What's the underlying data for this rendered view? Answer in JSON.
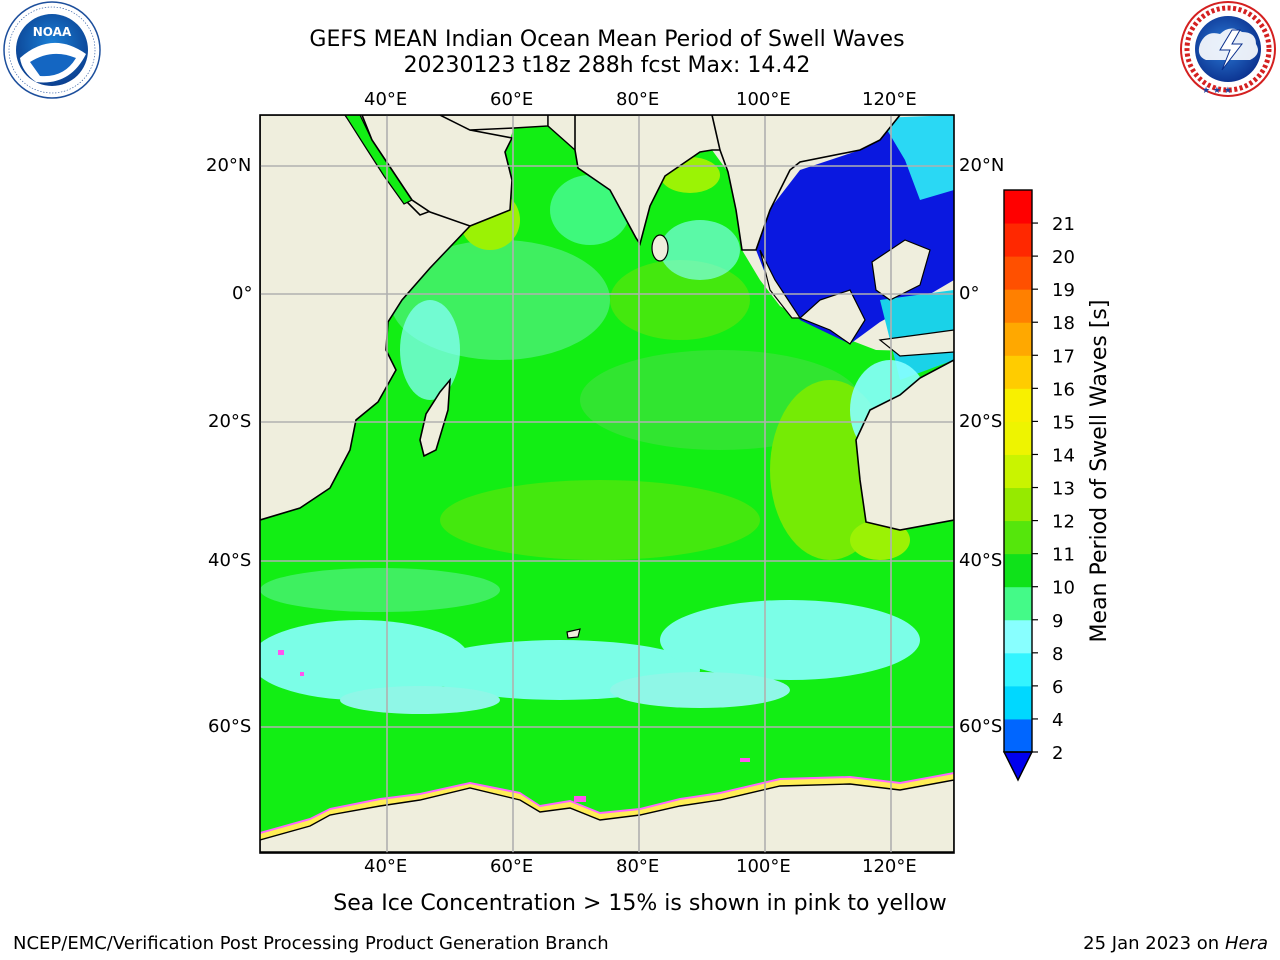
{
  "title": {
    "line1": "GEFS MEAN Indian Ocean Mean Period of Swell Waves",
    "line2": "20230123 t18z 288h fcst   Max: 14.42"
  },
  "map": {
    "lon_labels": [
      "40°E",
      "60°E",
      "80°E",
      "100°E",
      "120°E"
    ],
    "lat_labels": [
      "20°N",
      "0°",
      "20°S",
      "40°S",
      "60°S"
    ],
    "land_color": "#efeedd",
    "ocean_color": "#12f012"
  },
  "colorbar": {
    "label": "Mean Period of Swell Waves [s]",
    "tick_labels": [
      "2",
      "4",
      "6",
      "8",
      "9",
      "10",
      "11",
      "12",
      "13",
      "14",
      "15",
      "16",
      "17",
      "18",
      "19",
      "20",
      "21"
    ],
    "colors": [
      "#0066ff",
      "#00d8ff",
      "#33f4ff",
      "#88ffff",
      "#44fa88",
      "#0fe21a",
      "#55e60c",
      "#96ea00",
      "#c9f400",
      "#eef400",
      "#f8f000",
      "#ffcc00",
      "#ffa800",
      "#ff8000",
      "#ff5000",
      "#ff2800",
      "#ff0000"
    ],
    "under_color": "#0000ee"
  },
  "note": "Sea Ice Concentration > 15% is shown in pink to yellow",
  "credit": "NCEP/EMC/Verification Post Processing Product Generation Branch",
  "date": "25 Jan 2023 on",
  "machine": "Hera",
  "logos": {
    "noaa": "NOAA",
    "noaa_ring": "NATIONAL OCEANIC AND ATMOSPHERIC ADMINISTRATION · U.S. DEPARTMENT OF COMMERCE",
    "nws_ring": "NATIONAL WEATHER SERVICE"
  }
}
